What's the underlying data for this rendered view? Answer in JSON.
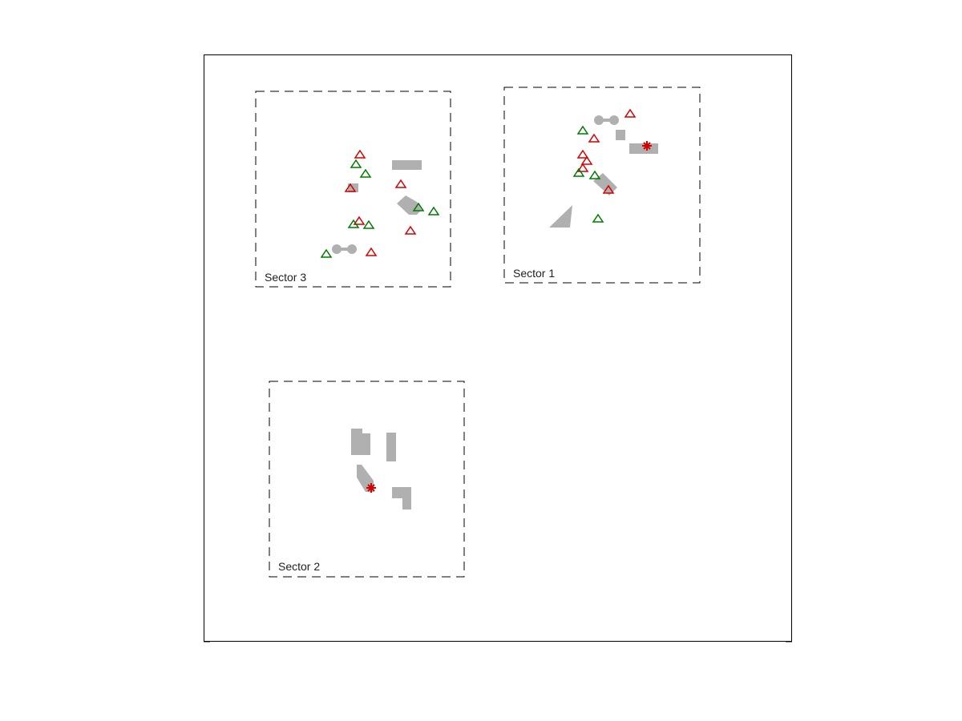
{
  "colors": {
    "frame": "#000000",
    "obstacle": "#b0b0b0",
    "red_marker": "#d40000",
    "green_marker": "#007a00",
    "background": "#ffffff"
  },
  "marker_legend": {
    "triangle": "triangle-outline",
    "star": "asterisk-star"
  },
  "sectors": [
    {
      "id": "sector-3",
      "label": "Sector 3"
    },
    {
      "id": "sector-1",
      "label": "Sector 1"
    },
    {
      "id": "sector-2",
      "label": "Sector 2"
    }
  ]
}
